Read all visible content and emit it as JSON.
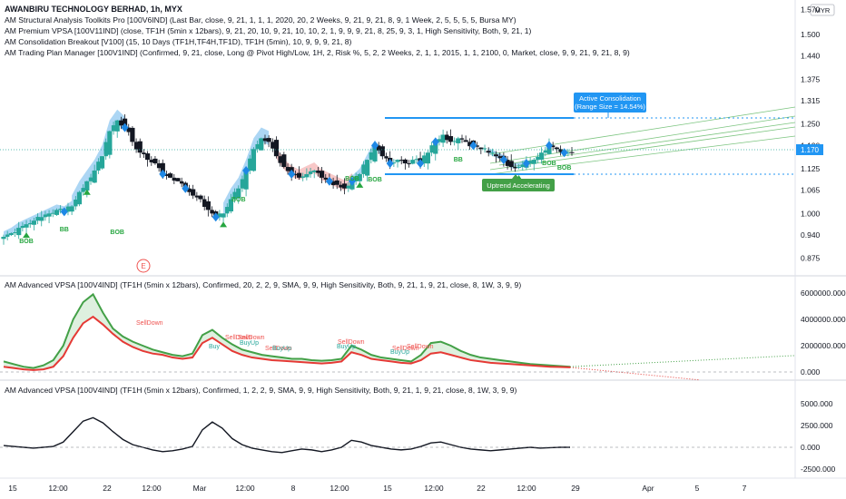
{
  "chart_title": "AWANBIRU TECHNOLOGY BERHAD, 1h, MYX",
  "currency": "MYR",
  "indicators": [
    "AM Structural Analysis Toolkits Pro [100V6IND] (Last Bar, close, 9, 21, 1, 1, 1, 2020, 20, 2 Weeks, 9, 21, 9, 21, 8, 9, 1 Week, 2, 5, 5, 5, 5, Bursa MY)",
    "AM Premium VPSA [100V11IND] (close, TF1H (5min x 12bars), 9, 21, 20, 10, 9, 21, 10, 10, 2, 1, 9, 9, 9, 21, 8, 25, 9, 3, 1, High Sensitivity, Both, 9, 21, 1)",
    "AM Consolidation Breakout [V100] (15, 10 Days (TF1H,TF4H,TF1D), TF1H (5min), 10, 9, 9, 9, 21, 8)",
    "AM Trading Plan Manager [100V1IND] (Confirmed, 9, 21, close, Long @ Pivot High/Low, 1H, 2, Risk %, 5, 2, 2 Weeks, 2, 1, 1, 2015, 1, 1, 2100, 0, Market, close, 9, 9, 21, 9, 21, 8, 9)"
  ],
  "callouts": {
    "consolidation_line1": "Active Consolidation",
    "consolidation_line2": "(Range Size = 14.54%)",
    "uptrend": "Uptrend Accelerating",
    "event_marker": "E"
  },
  "signal_labels": [
    "BOB",
    "BB",
    "BOB",
    "BOB",
    "BOB",
    "BOB",
    "BB",
    "BOB",
    "BOB"
  ],
  "pane2_title": "AM Advanced VPSA [100V4IND] (TF1H (5min x 12bars), Confirmed, 20, 2, 2, 9, SMA, 9, 9, High Sensitivity, Both, 9, 21, 1, 9, 21, close, 8, 1W, 3, 9, 9)",
  "pane3_title": "AM Advanced VPSA [100V4IND] (TF1H (5min x 12bars), Confirmed, 1, 2, 2, 9, SMA, 9, 9, High Sensitivity, Both, 9, 21, 1, 9, 21, close, 8, 1W, 3, 9, 9)",
  "pane2_annotations": [
    "SellDown",
    "Buy",
    "SellDown",
    "BuyUp",
    "SellDown",
    "BuyUp",
    "SellDown",
    "BuyUp",
    "SellDown",
    "BuyUp",
    "SellDown",
    "SellDown"
  ],
  "current_price_label": "1.170",
  "colors": {
    "up": "#26a69a",
    "down": "#131722",
    "blue_band": "#90c8f0",
    "red_band": "#f5b5b5",
    "vpsa_green": "#43a047",
    "vpsa_red": "#e53935",
    "consolidation_blue": "#2196f3",
    "channel_green": "#66bb6a",
    "price_badge": "#2196f3",
    "uptrend_badge": "#43a047"
  },
  "chart_data": [
    {
      "type": "candlestick",
      "title": "AWANBIRU TECHNOLOGY BERHAD, 1h, MYX",
      "y_ticks": [
        "1.570",
        "1.500",
        "1.440",
        "1.375",
        "1.315",
        "1.250",
        "1.190",
        "1.125",
        "1.065",
        "1.000",
        "0.940",
        "0.875"
      ],
      "x_ticks": [
        "15",
        "12:00",
        "22",
        "12:00",
        "Mar",
        "12:00",
        "8",
        "12:00",
        "15",
        "12:00",
        "22",
        "12:00",
        "29",
        "Apr",
        "5",
        "7"
      ],
      "last_price": 1.17,
      "consolidation_range": [
        1.11,
        1.26
      ],
      "range_size_pct": 14.54,
      "close_path": [
        0.935,
        0.945,
        0.96,
        0.97,
        0.98,
        0.99,
        1.0,
        1.01,
        1.005,
        1.02,
        1.06,
        1.09,
        1.12,
        1.16,
        1.23,
        1.26,
        1.24,
        1.2,
        1.17,
        1.15,
        1.14,
        1.11,
        1.1,
        1.09,
        1.07,
        1.05,
        1.04,
        1.01,
        0.99,
        1.0,
        1.04,
        1.07,
        1.12,
        1.18,
        1.21,
        1.2,
        1.16,
        1.13,
        1.11,
        1.1,
        1.11,
        1.12,
        1.1,
        1.09,
        1.08,
        1.07,
        1.09,
        1.11,
        1.15,
        1.19,
        1.16,
        1.14,
        1.15,
        1.14,
        1.15,
        1.14,
        1.17,
        1.2,
        1.22,
        1.2,
        1.21,
        1.2,
        1.19,
        1.18,
        1.17,
        1.16,
        1.15,
        1.13,
        1.13,
        1.14,
        1.15,
        1.17,
        1.19,
        1.18,
        1.17,
        1.17
      ]
    },
    {
      "type": "line",
      "title": "AM Advanced VPSA [100V4IND] (TF1H (5min x 12bars), Confirmed, 20, 2, 2, 9, SMA, 9, 9, High Sensitivity, Both, 9, 21, 1, 9, 21, close, 8, 1W, 3, 9, 9)",
      "y_ticks": [
        "6000000.000",
        "4000000.000",
        "2000000.000",
        "0.000"
      ],
      "series": [
        {
          "values": [
            800000,
            600000,
            400000,
            300000,
            500000,
            900000,
            2000000,
            4000000,
            5300000,
            5900000,
            4500000,
            3300000,
            2700000,
            2300000,
            2000000,
            1700000,
            1500000,
            1300000,
            1200000,
            1400000,
            2800000,
            3200000,
            2600000,
            2100000,
            1700000,
            1500000,
            1300000,
            1200000,
            1100000,
            1000000,
            1000000,
            900000,
            850000,
            900000,
            1000000,
            2000000,
            1700000,
            1300000,
            1100000,
            1000000,
            900000,
            800000,
            1300000,
            2200000,
            2300000,
            2000000,
            1600000,
            1300000,
            1100000,
            1000000,
            900000,
            800000,
            700000,
            600000,
            550000,
            500000,
            450000,
            400000
          ]
        },
        {
          "values": [
            400000,
            300000,
            200000,
            150000,
            200000,
            400000,
            1200000,
            2600000,
            3700000,
            4200000,
            3600000,
            2900000,
            2300000,
            1900000,
            1600000,
            1400000,
            1300000,
            1100000,
            1000000,
            1100000,
            2200000,
            2600000,
            2100000,
            1600000,
            1300000,
            1100000,
            1000000,
            900000,
            850000,
            800000,
            750000,
            700000,
            650000,
            700000,
            800000,
            1500000,
            1300000,
            1000000,
            900000,
            800000,
            700000,
            650000,
            900000,
            1400000,
            1500000,
            1300000,
            1100000,
            900000,
            800000,
            700000,
            650000,
            600000,
            550000,
            500000,
            450000,
            400000,
            380000,
            350000
          ]
        }
      ]
    },
    {
      "type": "line",
      "title": "AM Advanced VPSA [100V4IND] (TF1H (5min x 12bars), Confirmed, 1, 2, 2, 9, SMA, 9, 9, High Sensitivity, Both, 9, 21, 1, 9, 21, close, 8, 1W, 3, 9, 9)",
      "y_ticks": [
        "5000.000",
        "2500.000",
        "0.000",
        "-2500.000"
      ],
      "series": [
        {
          "values": [
            200,
            100,
            0,
            -100,
            0,
            100,
            600,
            1800,
            3000,
            3400,
            2800,
            1800,
            900,
            300,
            0,
            -300,
            -500,
            -400,
            -200,
            100,
            2000,
            2900,
            2200,
            1000,
            300,
            -100,
            -300,
            -500,
            -600,
            -400,
            -200,
            -300,
            -500,
            -300,
            0,
            800,
            600,
            200,
            0,
            -200,
            -300,
            -200,
            100,
            500,
            600,
            300,
            0,
            -200,
            -300,
            -400,
            -300,
            -200,
            -100,
            0,
            -100,
            -50,
            0,
            0
          ]
        }
      ]
    }
  ]
}
